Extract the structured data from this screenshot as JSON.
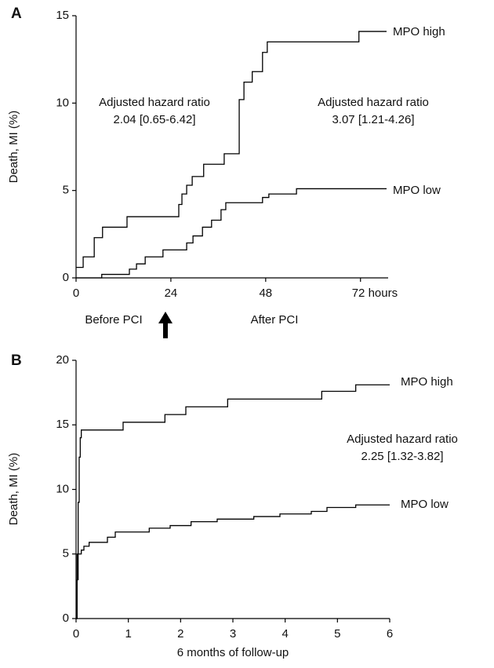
{
  "chart_data": [
    {
      "type": "step",
      "panel": "A",
      "ylabel": "Death, MI (%)",
      "xlim": [
        0,
        79
      ],
      "xticks": [
        0,
        24,
        48,
        {
          "value": 72,
          "label": "72 hours"
        }
      ],
      "ylim": [
        0,
        15
      ],
      "yticks": [
        0,
        5,
        10,
        15
      ],
      "annotations": [
        "Adjusted hazard ratio",
        "2.04 [0.65-6.42]",
        "Adjusted hazard ratio",
        "3.07 [1.21-4.26]",
        "Before PCI",
        "After PCI"
      ],
      "series": [
        {
          "name": "MPO high",
          "color": "#000000",
          "x": [
            0,
            1.8,
            4.6,
            6.7,
            12.9,
            26,
            26.8,
            28,
            29.4,
            32.3,
            37.5,
            41.3,
            42.5,
            44.6,
            47.2,
            48.4,
            71.6,
            78.6
          ],
          "values": [
            0.6,
            1.2,
            2.3,
            2.9,
            3.5,
            4.2,
            4.8,
            5.3,
            5.8,
            6.5,
            7.1,
            10.2,
            11.2,
            11.8,
            12.9,
            13.5,
            14.1,
            14.1
          ]
        },
        {
          "name": "MPO low",
          "color": "#000000",
          "x": [
            0,
            6.5,
            13.5,
            15.3,
            17.5,
            22,
            28,
            29.6,
            32,
            34.3,
            36.7,
            37.9,
            47.2,
            48.8,
            55.8,
            78.6
          ],
          "values": [
            0,
            0.2,
            0.5,
            0.8,
            1.2,
            1.6,
            2.0,
            2.4,
            2.9,
            3.3,
            3.9,
            4.3,
            4.6,
            4.8,
            5.1,
            5.1
          ]
        }
      ]
    },
    {
      "type": "step",
      "panel": "B",
      "ylabel": "Death, MI (%)",
      "xlabel": "6 months of follow-up",
      "xlim": [
        0,
        6
      ],
      "xticks": [
        0,
        1,
        2,
        3,
        4,
        5,
        6
      ],
      "ylim": [
        0,
        20
      ],
      "yticks": [
        0,
        5,
        10,
        15,
        20
      ],
      "annotations": [
        "Adjusted hazard ratio",
        "2.25 [1.32-3.82]"
      ],
      "series": [
        {
          "name": "MPO high",
          "color": "#000000",
          "x": [
            0,
            0.02,
            0.04,
            0.06,
            0.08,
            0.1,
            0.9,
            1.7,
            2.1,
            2.9,
            4.7,
            5.35,
            6
          ],
          "values": [
            0,
            5,
            9,
            12.5,
            14,
            14.6,
            15.2,
            15.8,
            16.4,
            17.0,
            17.6,
            18.1,
            18.1
          ]
        },
        {
          "name": "MPO low",
          "color": "#000000",
          "x": [
            0,
            0.02,
            0.04,
            0.1,
            0.15,
            0.25,
            0.6,
            0.75,
            1.4,
            1.8,
            2.2,
            2.7,
            3.4,
            3.9,
            4.5,
            4.8,
            5.35,
            6
          ],
          "values": [
            0,
            3,
            5,
            5.3,
            5.6,
            5.9,
            6.3,
            6.7,
            7.0,
            7.2,
            7.5,
            7.7,
            7.9,
            8.1,
            8.3,
            8.6,
            8.8,
            8.8
          ]
        }
      ]
    }
  ]
}
